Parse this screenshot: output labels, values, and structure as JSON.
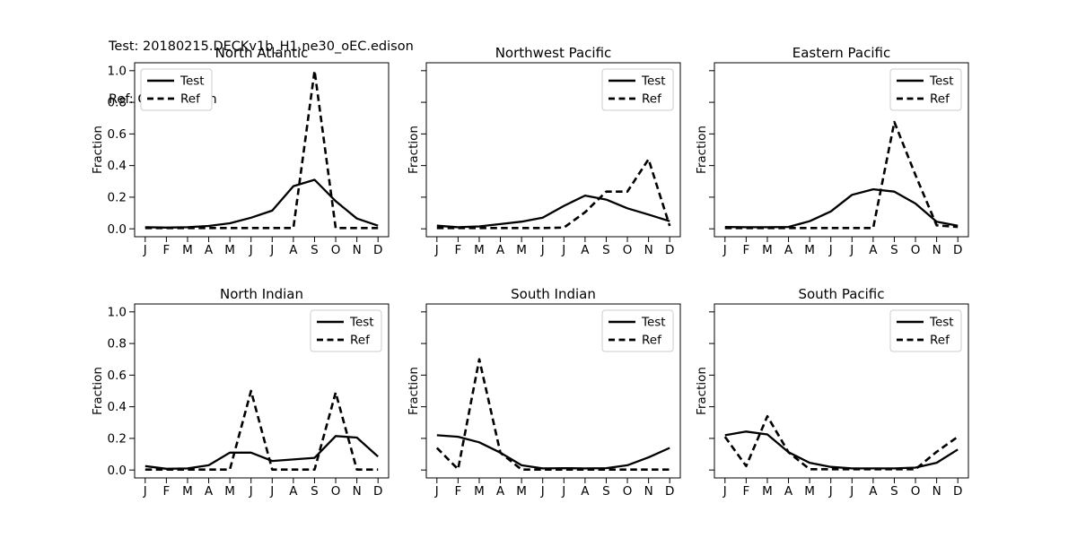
{
  "header": {
    "test_label": "Test: 20180215.DECKv1b_H1.ne30_oEC.edison",
    "ref_label": "Ref: Observation"
  },
  "figure": {
    "background": "#ffffff",
    "line_color": "#000000",
    "legend_edge_color": "#cccccc"
  },
  "chart_data": [
    {
      "type": "line",
      "title": "North Atlantic",
      "xlabel": "",
      "ylabel": "Fraction",
      "x_categories": [
        "J",
        "F",
        "M",
        "A",
        "M",
        "J",
        "J",
        "A",
        "S",
        "O",
        "N",
        "D"
      ],
      "ylim": [
        -0.05,
        1.05
      ],
      "yticks": [
        "0.0",
        "0.2",
        "0.4",
        "0.6",
        "0.8",
        "1.0"
      ],
      "show_ytick_labels": true,
      "grid": false,
      "legend": {
        "position": "top-left",
        "entries": [
          "Test",
          "Ref"
        ]
      },
      "series": [
        {
          "name": "Test",
          "line_style": "solid",
          "values": [
            0.01,
            0.008,
            0.01,
            0.018,
            0.035,
            0.07,
            0.115,
            0.27,
            0.31,
            0.175,
            0.065,
            0.02
          ]
        },
        {
          "name": "Ref",
          "line_style": "dashed",
          "values": [
            0.005,
            0.005,
            0.005,
            0.005,
            0.005,
            0.005,
            0.005,
            0.005,
            1.0,
            0.005,
            0.005,
            0.005
          ]
        }
      ]
    },
    {
      "type": "line",
      "title": "Northwest Pacific",
      "xlabel": "",
      "ylabel": "Fraction",
      "x_categories": [
        "J",
        "F",
        "M",
        "A",
        "M",
        "J",
        "J",
        "A",
        "S",
        "O",
        "N",
        "D"
      ],
      "ylim": [
        -0.05,
        1.05
      ],
      "yticks": [
        "0.0",
        "0.2",
        "0.4",
        "0.6",
        "0.8",
        "1.0"
      ],
      "show_ytick_labels": false,
      "grid": false,
      "legend": {
        "position": "top-right",
        "entries": [
          "Test",
          "Ref"
        ]
      },
      "series": [
        {
          "name": "Test",
          "line_style": "solid",
          "values": [
            0.02,
            0.01,
            0.015,
            0.03,
            0.045,
            0.07,
            0.145,
            0.21,
            0.185,
            0.13,
            0.09,
            0.048
          ]
        },
        {
          "name": "Ref",
          "line_style": "dashed",
          "values": [
            0.005,
            0.005,
            0.005,
            0.005,
            0.005,
            0.005,
            0.008,
            0.105,
            0.235,
            0.235,
            0.44,
            0.018
          ]
        }
      ]
    },
    {
      "type": "line",
      "title": "Eastern Pacific",
      "xlabel": "",
      "ylabel": "Fraction",
      "x_categories": [
        "J",
        "F",
        "M",
        "A",
        "M",
        "J",
        "J",
        "A",
        "S",
        "O",
        "N",
        "D"
      ],
      "ylim": [
        -0.05,
        1.05
      ],
      "yticks": [
        "0.0",
        "0.2",
        "0.4",
        "0.6",
        "0.8",
        "1.0"
      ],
      "show_ytick_labels": false,
      "grid": false,
      "legend": {
        "position": "top-right",
        "entries": [
          "Test",
          "Ref"
        ]
      },
      "series": [
        {
          "name": "Test",
          "line_style": "solid",
          "values": [
            0.012,
            0.01,
            0.01,
            0.012,
            0.048,
            0.11,
            0.215,
            0.25,
            0.235,
            0.16,
            0.045,
            0.02
          ]
        },
        {
          "name": "Ref",
          "line_style": "dashed",
          "values": [
            0.005,
            0.005,
            0.005,
            0.005,
            0.005,
            0.005,
            0.005,
            0.005,
            0.675,
            0.34,
            0.022,
            0.012
          ]
        }
      ]
    },
    {
      "type": "line",
      "title": "North Indian",
      "xlabel": "",
      "ylabel": "Fraction",
      "x_categories": [
        "J",
        "F",
        "M",
        "A",
        "M",
        "J",
        "J",
        "A",
        "S",
        "O",
        "N",
        "D"
      ],
      "ylim": [
        -0.05,
        1.05
      ],
      "yticks": [
        "0.0",
        "0.2",
        "0.4",
        "0.6",
        "0.8",
        "1.0"
      ],
      "show_ytick_labels": true,
      "grid": false,
      "legend": {
        "position": "top-right",
        "entries": [
          "Test",
          "Ref"
        ]
      },
      "series": [
        {
          "name": "Test",
          "line_style": "solid",
          "values": [
            0.025,
            0.008,
            0.01,
            0.03,
            0.11,
            0.11,
            0.057,
            0.067,
            0.077,
            0.215,
            0.205,
            0.085
          ]
        },
        {
          "name": "Ref",
          "line_style": "dashed",
          "values": [
            0.003,
            0.003,
            0.003,
            0.003,
            0.003,
            0.5,
            0.003,
            0.003,
            0.003,
            0.49,
            0.003,
            0.003
          ]
        }
      ]
    },
    {
      "type": "line",
      "title": "South Indian",
      "xlabel": "",
      "ylabel": "Fraction",
      "x_categories": [
        "J",
        "F",
        "M",
        "A",
        "M",
        "J",
        "J",
        "A",
        "S",
        "O",
        "N",
        "D"
      ],
      "ylim": [
        -0.05,
        1.05
      ],
      "yticks": [
        "0.0",
        "0.2",
        "0.4",
        "0.6",
        "0.8",
        "1.0"
      ],
      "show_ytick_labels": false,
      "grid": false,
      "legend": {
        "position": "top-right",
        "entries": [
          "Test",
          "Ref"
        ]
      },
      "series": [
        {
          "name": "Test",
          "line_style": "solid",
          "values": [
            0.22,
            0.21,
            0.175,
            0.11,
            0.03,
            0.01,
            0.012,
            0.01,
            0.012,
            0.03,
            0.08,
            0.14
          ]
        },
        {
          "name": "Ref",
          "line_style": "dashed",
          "values": [
            0.14,
            0.005,
            0.7,
            0.11,
            0.003,
            0.003,
            0.003,
            0.003,
            0.003,
            0.003,
            0.003,
            0.003
          ]
        }
      ]
    },
    {
      "type": "line",
      "title": "South Pacific",
      "xlabel": "",
      "ylabel": "Fraction",
      "x_categories": [
        "J",
        "F",
        "M",
        "A",
        "M",
        "J",
        "J",
        "A",
        "S",
        "O",
        "N",
        "D"
      ],
      "ylim": [
        -0.05,
        1.05
      ],
      "yticks": [
        "0.0",
        "0.2",
        "0.4",
        "0.6",
        "0.8",
        "1.0"
      ],
      "show_ytick_labels": false,
      "grid": false,
      "legend": {
        "position": "top-right",
        "entries": [
          "Test",
          "Ref"
        ]
      },
      "series": [
        {
          "name": "Test",
          "line_style": "solid",
          "values": [
            0.22,
            0.243,
            0.225,
            0.113,
            0.046,
            0.02,
            0.01,
            0.01,
            0.01,
            0.015,
            0.046,
            0.13
          ]
        },
        {
          "name": "Ref",
          "line_style": "dashed",
          "values": [
            0.21,
            0.025,
            0.34,
            0.113,
            0.005,
            0.005,
            0.005,
            0.005,
            0.005,
            0.005,
            0.115,
            0.21
          ]
        }
      ]
    }
  ]
}
